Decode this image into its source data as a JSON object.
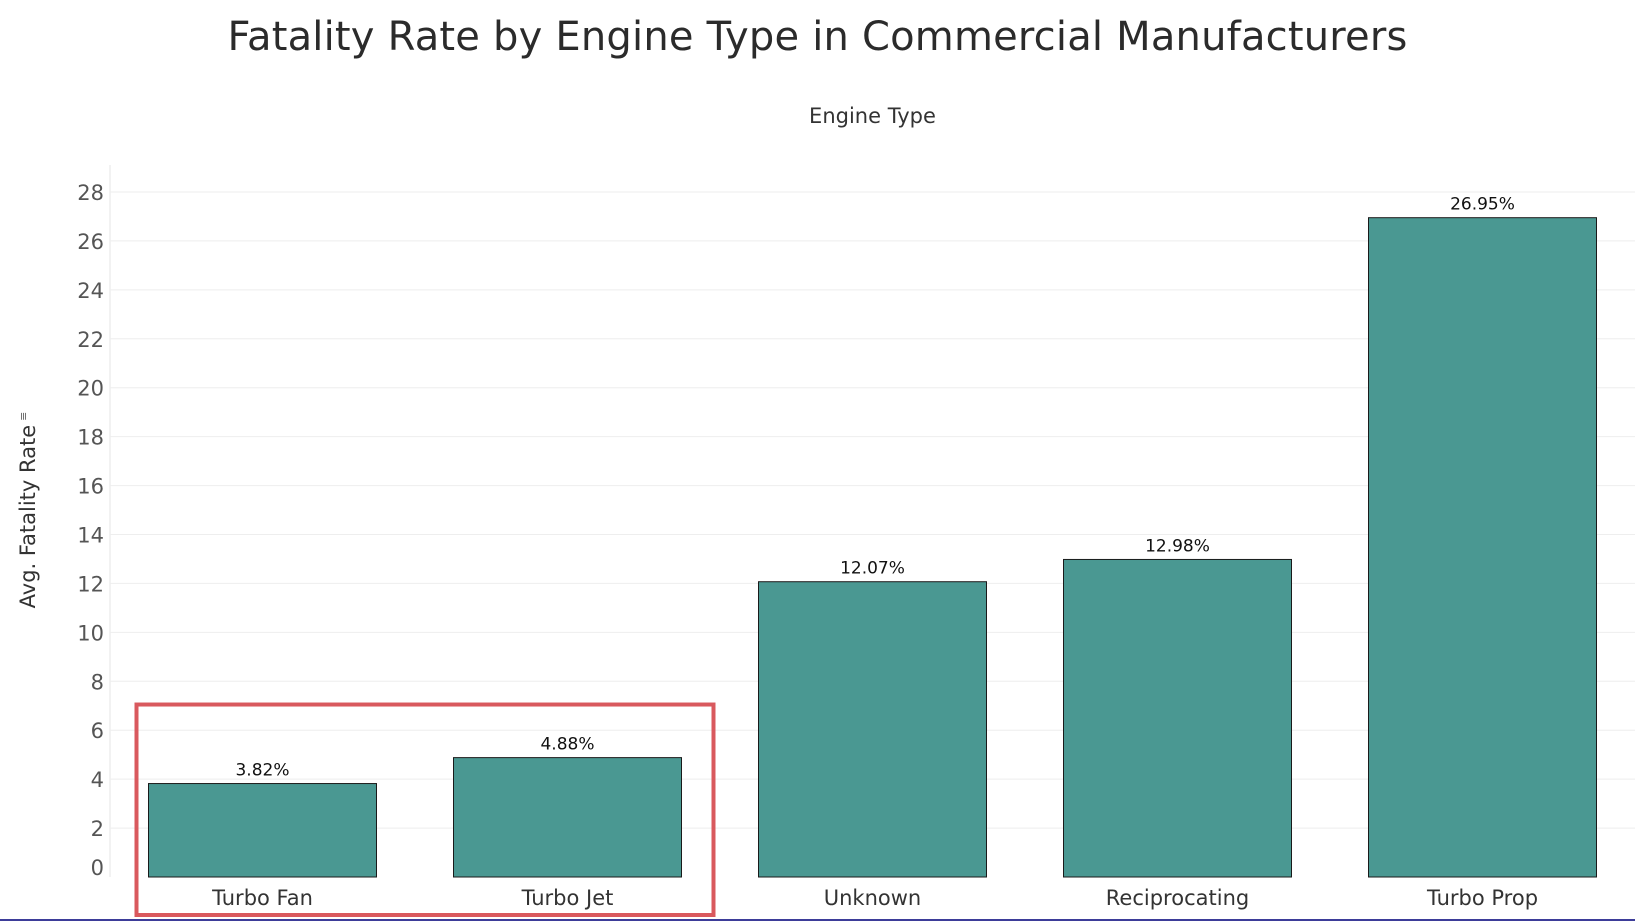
{
  "chart_data": {
    "type": "bar",
    "title": "Fatality Rate by Engine Type in Commercial Manufacturers",
    "column_header": "Engine Type",
    "ylabel": "Avg. Fatality Rate",
    "xlabel": "",
    "categories": [
      "Turbo Fan",
      "Turbo Jet",
      "Unknown",
      "Reciprocating",
      "Turbo Prop"
    ],
    "values": [
      3.82,
      4.88,
      12.07,
      12.98,
      26.95
    ],
    "data_labels": [
      "3.82%",
      "4.88%",
      "12.07%",
      "12.98%",
      "26.95%"
    ],
    "ylim": [
      0,
      28
    ],
    "yticks": [
      0,
      2,
      4,
      6,
      8,
      10,
      12,
      14,
      16,
      18,
      20,
      22,
      24,
      26,
      28
    ],
    "grid": true,
    "legend": "none",
    "highlighted_categories": [
      "Turbo Fan",
      "Turbo Jet"
    ]
  },
  "colors": {
    "bar_fill": "#4a9892",
    "bar_stroke": "#1a1a1a",
    "highlight_box": "#d9595e",
    "gridline": "#eeeeee"
  },
  "icons": {
    "sort": "sort-descending-icon"
  }
}
